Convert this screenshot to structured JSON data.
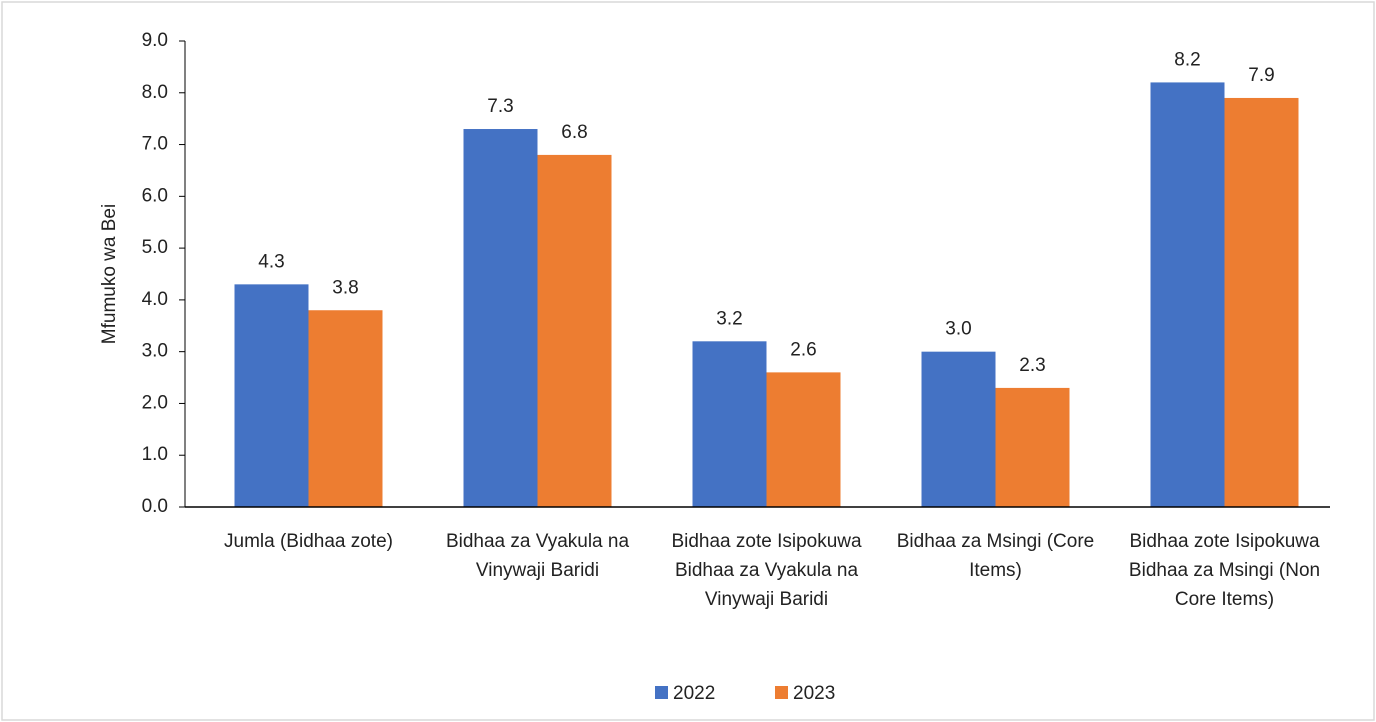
{
  "chart_data": {
    "type": "bar",
    "y_label": "Mfumuko wa Bei",
    "categories": [
      "Jumla (Bidhaa zote)",
      "Bidhaa za Vyakula na Vinywaji Baridi",
      "Bidhaa zote Isipokuwa Bidhaa za Vyakula na Vinywaji Baridi",
      "Bidhaa za Msingi (Core Items)",
      "Bidhaa zote Isipokuwa Bidhaa za Msingi (Non Core Items)"
    ],
    "series": [
      {
        "name": "2022",
        "color": "#4472c4",
        "values": [
          4.3,
          7.3,
          3.2,
          3.0,
          8.2
        ],
        "value_labels": [
          "4.3",
          "7.3",
          "3.2",
          "3.0",
          "8.2"
        ]
      },
      {
        "name": "2023",
        "color": "#ed7d31",
        "values": [
          3.8,
          6.8,
          2.6,
          2.3,
          7.9
        ],
        "value_labels": [
          "3.8",
          "6.8",
          "2.6",
          "2.3",
          "7.9"
        ]
      }
    ],
    "ylim": [
      0,
      9
    ],
    "yticks": [
      {
        "value": 0,
        "label": "0.0"
      },
      {
        "value": 1,
        "label": "1.0"
      },
      {
        "value": 2,
        "label": "2.0"
      },
      {
        "value": 3,
        "label": "3.0"
      },
      {
        "value": 4,
        "label": "4.0"
      },
      {
        "value": 5,
        "label": "5.0"
      },
      {
        "value": 6,
        "label": "6.0"
      },
      {
        "value": 7,
        "label": "7.0"
      },
      {
        "value": 8,
        "label": "8.0"
      },
      {
        "value": 9,
        "label": "9.0"
      }
    ],
    "grid": false,
    "legend": "bottom"
  }
}
